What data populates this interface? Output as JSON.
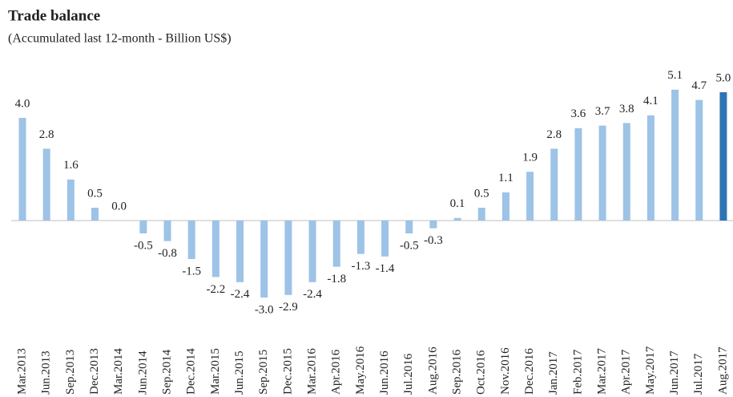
{
  "chart_data": {
    "type": "bar",
    "title": "Trade balance",
    "subtitle": "(Accumulated last 12-month - Billion US$)",
    "categories": [
      "Mar.2013",
      "Jun.2013",
      "Sep.2013",
      "Dec.2013",
      "Mar.2014",
      "Jun.2014",
      "Sep.2014",
      "Dec.2014",
      "Mar.2015",
      "Jun.2015",
      "Sep.2015",
      "Dec.2015",
      "Mar.2016",
      "Apr.2016",
      "May.2016",
      "Jun.2016",
      "Jul.2016",
      "Aug.2016",
      "Sep.2016",
      "Oct.2016",
      "Nov.2016",
      "Dec.2016",
      "Jan.2017",
      "Feb.2017",
      "Mar.2017",
      "Apr.2017",
      "May.2017",
      "Jun.2017",
      "Jul.2017",
      "Aug.2017"
    ],
    "values": [
      4.0,
      2.8,
      1.6,
      0.5,
      0.0,
      -0.5,
      -0.8,
      -1.5,
      -2.2,
      -2.4,
      -3.0,
      -2.9,
      -2.4,
      -1.8,
      -1.3,
      -1.4,
      -0.5,
      -0.3,
      0.1,
      0.5,
      1.1,
      1.9,
      2.8,
      3.6,
      3.7,
      3.8,
      4.1,
      5.1,
      4.7,
      5.0
    ],
    "value_labels": [
      "4.0",
      "2.8",
      "1.6",
      "0.5",
      "0.0",
      "-0.5",
      "-0.8",
      "-1.5",
      "-2.2",
      "-2.4",
      "-3.0",
      "-2.9",
      "-2.4",
      "-1.8",
      "-1.3",
      "-1.4",
      "-0.5",
      "-0.3",
      "0.1",
      "0.5",
      "1.1",
      "1.9",
      "2.8",
      "3.6",
      "3.7",
      "3.8",
      "4.1",
      "5.1",
      "4.7",
      "5.0"
    ],
    "colors": [
      "#9dc3e6",
      "#9dc3e6",
      "#9dc3e6",
      "#9dc3e6",
      "#9dc3e6",
      "#9dc3e6",
      "#9dc3e6",
      "#9dc3e6",
      "#9dc3e6",
      "#9dc3e6",
      "#9dc3e6",
      "#9dc3e6",
      "#9dc3e6",
      "#9dc3e6",
      "#9dc3e6",
      "#9dc3e6",
      "#9dc3e6",
      "#9dc3e6",
      "#9dc3e6",
      "#9dc3e6",
      "#9dc3e6",
      "#9dc3e6",
      "#9dc3e6",
      "#9dc3e6",
      "#9dc3e6",
      "#9dc3e6",
      "#9dc3e6",
      "#9dc3e6",
      "#9dc3e6",
      "#2e75b6"
    ],
    "ylim": [
      -4,
      6
    ]
  }
}
